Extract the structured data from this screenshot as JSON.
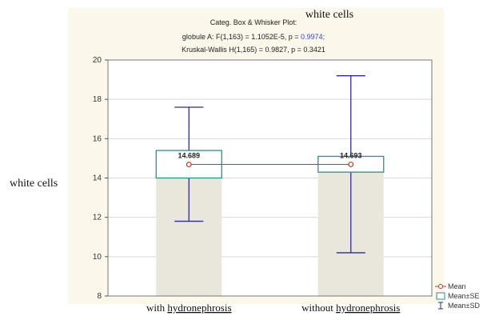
{
  "header": {
    "line1": "Categ. Box & Whisker Plot:",
    "line2_prefix": "globule A:   F(1,163) = 1.1052E-5, p = ",
    "line2_p": "0.9974;",
    "line3": "Kruskal-Wallis H(1,165) = 0.9827, p = 0.3421",
    "overlay_title": "white cells"
  },
  "chart_data": {
    "type": "box",
    "title": "white cells",
    "ylabel": "white cells",
    "xlabel": "",
    "ylim": [
      8,
      20
    ],
    "yticks": [
      8,
      10,
      12,
      14,
      16,
      18,
      20
    ],
    "grid": true,
    "categories": [
      "with hydronephrosis",
      "without hydronephrosis"
    ],
    "mean": [
      14.689,
      14.693
    ],
    "mean_minus_se": [
      14.0,
      14.3
    ],
    "mean_plus_se": [
      15.4,
      15.1
    ],
    "mean_minus_sd": [
      11.8,
      10.2
    ],
    "mean_plus_sd": [
      17.6,
      19.2
    ],
    "mean_labels": [
      "14.689",
      "14.693"
    ],
    "legend_position": "bottom-right",
    "legend": [
      "Mean",
      "Mean±SE",
      "Mean±SD"
    ],
    "colors": {
      "mean": "#c0392b",
      "se_box": "#2f8f8a",
      "sd_whisker": "#2b2f8f",
      "bar_fill": "#e9e6dc",
      "grid": "#d9d9d9"
    }
  }
}
